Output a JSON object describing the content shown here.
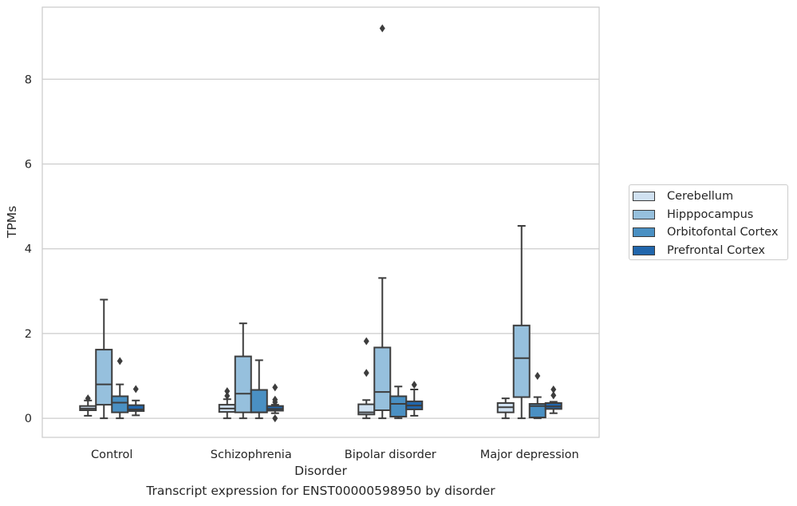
{
  "caption": "Transcript expression for ENST00000598950 by disorder",
  "chart_data": {
    "type": "box",
    "xlabel": "Disorder",
    "ylabel": "TPMs",
    "categories": [
      "Control",
      "Schizophrenia",
      "Bipolar disorder",
      "Major depression"
    ],
    "ylim": [
      -0.45,
      9.7
    ],
    "yticks": [
      0,
      2,
      4,
      6,
      8
    ],
    "grid": "horizontal",
    "legend_position": "right",
    "series": [
      {
        "name": "Cerebellum",
        "color": "#d0e1f1",
        "boxes": [
          {
            "q1": 0.19,
            "median": 0.23,
            "q3": 0.29,
            "whisker_low": 0.06,
            "whisker_high": 0.42,
            "outliers": [
              0.47
            ]
          },
          {
            "q1": 0.15,
            "median": 0.23,
            "q3": 0.32,
            "whisker_low": 0.0,
            "whisker_high": 0.45,
            "outliers": [
              0.53,
              0.64
            ]
          },
          {
            "q1": 0.09,
            "median": 0.14,
            "q3": 0.33,
            "whisker_low": 0.0,
            "whisker_high": 0.43,
            "outliers": [
              1.07,
              1.82
            ]
          },
          {
            "q1": 0.14,
            "median": 0.26,
            "q3": 0.36,
            "whisker_low": 0.0,
            "whisker_high": 0.47,
            "outliers": []
          }
        ]
      },
      {
        "name": "Hipppocampus",
        "color": "#96c0dd",
        "boxes": [
          {
            "q1": 0.32,
            "median": 0.8,
            "q3": 1.62,
            "whisker_low": 0.0,
            "whisker_high": 2.8,
            "outliers": []
          },
          {
            "q1": 0.14,
            "median": 0.58,
            "q3": 1.46,
            "whisker_low": 0.0,
            "whisker_high": 2.24,
            "outliers": []
          },
          {
            "q1": 0.19,
            "median": 0.62,
            "q3": 1.67,
            "whisker_low": 0.0,
            "whisker_high": 3.31,
            "outliers": [
              9.2
            ]
          },
          {
            "q1": 0.5,
            "median": 1.42,
            "q3": 2.19,
            "whisker_low": 0.0,
            "whisker_high": 4.54,
            "outliers": []
          }
        ]
      },
      {
        "name": "Orbitofontal Cortex",
        "color": "#4a90c3",
        "boxes": [
          {
            "q1": 0.14,
            "median": 0.37,
            "q3": 0.52,
            "whisker_low": 0.0,
            "whisker_high": 0.8,
            "outliers": [
              1.35
            ]
          },
          {
            "q1": 0.14,
            "median": 0.14,
            "q3": 0.67,
            "whisker_low": 0.0,
            "whisker_high": 1.37,
            "outliers": []
          },
          {
            "q1": 0.04,
            "median": 0.34,
            "q3": 0.52,
            "whisker_low": 0.0,
            "whisker_high": 0.75,
            "outliers": []
          },
          {
            "q1": 0.02,
            "median": 0.29,
            "q3": 0.34,
            "whisker_low": 0.0,
            "whisker_high": 0.5,
            "outliers": [
              1.0
            ]
          }
        ]
      },
      {
        "name": "Prefrontal Cortex",
        "color": "#2166ac",
        "boxes": [
          {
            "q1": 0.17,
            "median": 0.21,
            "q3": 0.31,
            "whisker_low": 0.07,
            "whisker_high": 0.42,
            "outliers": [
              0.69
            ]
          },
          {
            "q1": 0.18,
            "median": 0.22,
            "q3": 0.29,
            "whisker_low": 0.12,
            "whisker_high": 0.32,
            "outliers": [
              0.0,
              0.38,
              0.44,
              0.73
            ]
          },
          {
            "q1": 0.21,
            "median": 0.3,
            "q3": 0.4,
            "whisker_low": 0.06,
            "whisker_high": 0.68,
            "outliers": [
              0.79
            ]
          },
          {
            "q1": 0.22,
            "median": 0.28,
            "q3": 0.36,
            "whisker_low": 0.12,
            "whisker_high": 0.39,
            "outliers": [
              0.54,
              0.68
            ]
          }
        ]
      }
    ]
  }
}
